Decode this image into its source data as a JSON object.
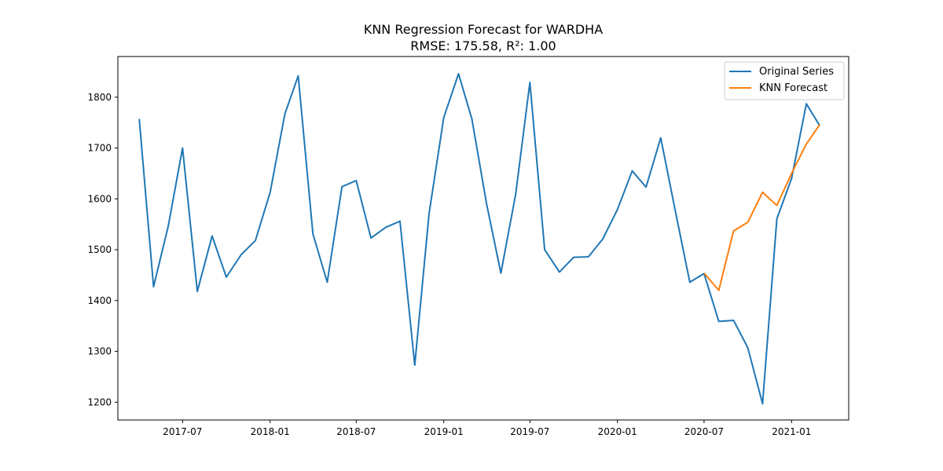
{
  "chart_data": {
    "type": "line",
    "title": "KNN Regression Forecast for WARDHA",
    "subtitle": "RMSE: 175.58, R²: 1.00",
    "xlabel": "",
    "ylabel": "",
    "xlim": [
      "2017-02-15",
      "2021-05-01"
    ],
    "ylim": [
      1165,
      1880
    ],
    "x_ticks": [
      {
        "date": "2017-07-01",
        "label": "2017-07"
      },
      {
        "date": "2018-01-01",
        "label": "2018-01"
      },
      {
        "date": "2018-07-01",
        "label": "2018-07"
      },
      {
        "date": "2019-01-01",
        "label": "2019-01"
      },
      {
        "date": "2019-07-01",
        "label": "2019-07"
      },
      {
        "date": "2020-01-01",
        "label": "2020-01"
      },
      {
        "date": "2020-07-01",
        "label": "2020-07"
      },
      {
        "date": "2021-01-01",
        "label": "2021-01"
      }
    ],
    "y_ticks": [
      1200,
      1300,
      1400,
      1500,
      1600,
      1700,
      1800
    ],
    "grid": false,
    "legend_position": "top-right",
    "series": [
      {
        "name": "Original Series",
        "color": "#1f77b4",
        "points": [
          [
            "2017-04-01",
            1757
          ],
          [
            "2017-05-01",
            1427
          ],
          [
            "2017-06-01",
            1547
          ],
          [
            "2017-07-01",
            1700
          ],
          [
            "2017-08-01",
            1418
          ],
          [
            "2017-09-01",
            1527
          ],
          [
            "2017-10-01",
            1446
          ],
          [
            "2017-11-01",
            1490
          ],
          [
            "2017-12-01",
            1518
          ],
          [
            "2018-01-01",
            1613
          ],
          [
            "2018-02-01",
            1767
          ],
          [
            "2018-03-01",
            1842
          ],
          [
            "2018-04-01",
            1531
          ],
          [
            "2018-05-01",
            1436
          ],
          [
            "2018-06-01",
            1624
          ],
          [
            "2018-07-01",
            1636
          ],
          [
            "2018-08-01",
            1523
          ],
          [
            "2018-09-01",
            1544
          ],
          [
            "2018-10-01",
            1556
          ],
          [
            "2018-11-01",
            1273
          ],
          [
            "2018-12-01",
            1571
          ],
          [
            "2019-01-01",
            1760
          ],
          [
            "2019-02-01",
            1846
          ],
          [
            "2019-03-01",
            1757
          ],
          [
            "2019-04-01",
            1590
          ],
          [
            "2019-05-01",
            1454
          ],
          [
            "2019-06-01",
            1609
          ],
          [
            "2019-07-01",
            1829
          ],
          [
            "2019-08-01",
            1500
          ],
          [
            "2019-09-01",
            1456
          ],
          [
            "2019-10-01",
            1485
          ],
          [
            "2019-11-01",
            1486
          ],
          [
            "2019-12-01",
            1521
          ],
          [
            "2020-01-01",
            1579
          ],
          [
            "2020-02-01",
            1655
          ],
          [
            "2020-03-01",
            1623
          ],
          [
            "2020-04-01",
            1720
          ],
          [
            "2020-05-01",
            1579
          ],
          [
            "2020-06-01",
            1436
          ],
          [
            "2020-07-01",
            1453
          ],
          [
            "2020-08-01",
            1359
          ],
          [
            "2020-09-01",
            1361
          ],
          [
            "2020-10-01",
            1307
          ],
          [
            "2020-11-01",
            1197
          ],
          [
            "2020-12-01",
            1561
          ],
          [
            "2021-01-01",
            1640
          ],
          [
            "2021-02-01",
            1787
          ],
          [
            "2021-03-01",
            1744
          ]
        ]
      },
      {
        "name": "KNN Forecast",
        "color": "#ff7f0e",
        "points": [
          [
            "2020-07-01",
            1454
          ],
          [
            "2020-08-01",
            1420
          ],
          [
            "2020-09-01",
            1537
          ],
          [
            "2020-10-01",
            1554
          ],
          [
            "2020-11-01",
            1613
          ],
          [
            "2020-12-01",
            1587
          ],
          [
            "2021-01-01",
            1650
          ],
          [
            "2021-02-01",
            1708
          ],
          [
            "2021-03-01",
            1746
          ]
        ]
      }
    ]
  }
}
